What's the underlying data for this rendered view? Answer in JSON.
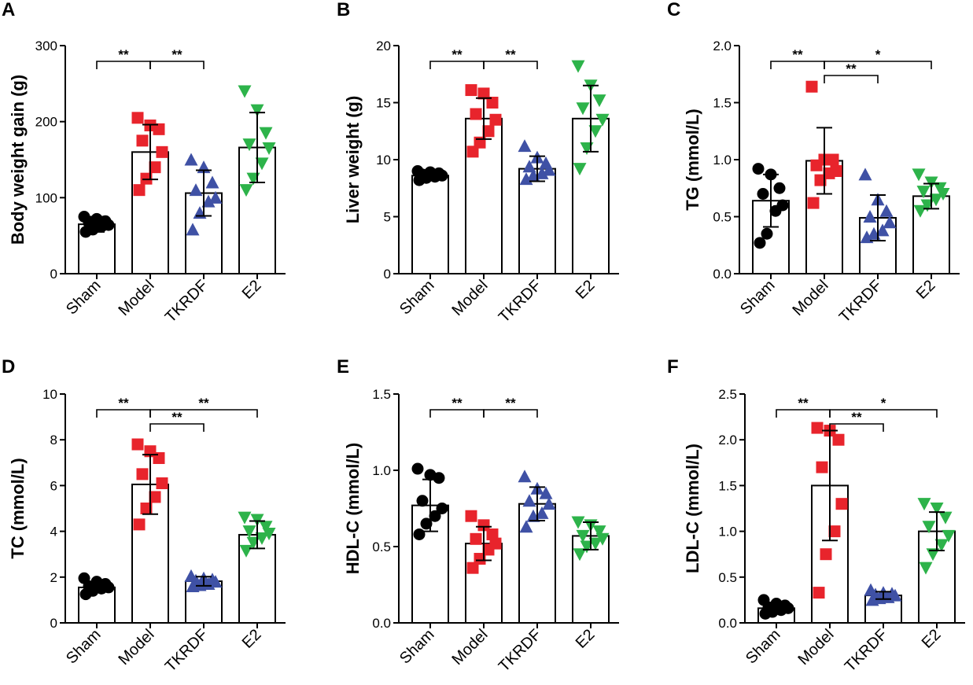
{
  "colors": {
    "Sham": "#000000",
    "Model": "#e8242c",
    "TKRDF": "#3f51a5",
    "E2": "#2db34a",
    "axis": "#000000",
    "bar_fill": "#ffffff"
  },
  "markers": {
    "Sham": "circle",
    "Model": "square",
    "TKRDF": "triangle-up",
    "E2": "triangle-down"
  },
  "chart_data": [
    {
      "panel": "A",
      "type": "bar",
      "ylabel": "Body weight gain (g)",
      "categories": [
        "Sham",
        "Model",
        "TKRDF",
        "E2"
      ],
      "ylim": [
        0,
        300
      ],
      "yticks": [
        0,
        100,
        200,
        300
      ],
      "tick_labels": [
        "0",
        "100",
        "200",
        "300"
      ],
      "means": [
        65,
        160,
        106,
        166
      ],
      "sd": [
        10,
        36,
        30,
        46
      ],
      "points": [
        [
          55,
          58,
          62,
          64,
          67,
          69,
          72,
          75
        ],
        [
          110,
          125,
          140,
          160,
          175,
          190,
          195,
          205
        ],
        [
          58,
          80,
          95,
          100,
          110,
          120,
          140,
          150
        ],
        [
          110,
          125,
          145,
          165,
          170,
          185,
          215,
          240
        ]
      ],
      "significance": [
        {
          "from": 0,
          "to": 1,
          "label": "**",
          "level": 0
        },
        {
          "from": 1,
          "to": 2,
          "label": "**",
          "level": 0
        }
      ]
    },
    {
      "panel": "B",
      "type": "bar",
      "ylabel": "Liver weight (g)",
      "categories": [
        "Sham",
        "Model",
        "TKRDF",
        "E2"
      ],
      "ylim": [
        0,
        20
      ],
      "yticks": [
        0,
        5,
        10,
        15,
        20
      ],
      "tick_labels": [
        "0",
        "5",
        "10",
        "15",
        "20"
      ],
      "means": [
        8.6,
        13.6,
        9.2,
        13.6
      ],
      "sd": [
        0.3,
        1.8,
        1.1,
        2.9
      ],
      "points": [
        [
          8.2,
          8.4,
          8.5,
          8.6,
          8.7,
          8.8,
          8.9,
          9.0
        ],
        [
          10.7,
          11.5,
          12.5,
          13.5,
          14.0,
          15.0,
          15.8,
          16.1
        ],
        [
          8.3,
          8.6,
          8.8,
          9.1,
          9.4,
          9.7,
          10.2,
          11.2
        ],
        [
          9.2,
          11.0,
          12.5,
          13.5,
          14.5,
          15.2,
          16.5,
          18.2
        ]
      ],
      "significance": [
        {
          "from": 0,
          "to": 1,
          "label": "**",
          "level": 0
        },
        {
          "from": 1,
          "to": 2,
          "label": "**",
          "level": 0
        }
      ]
    },
    {
      "panel": "C",
      "type": "bar",
      "ylabel": "TG (mmol/L)",
      "categories": [
        "Sham",
        "Model",
        "TKRDF",
        "E2"
      ],
      "ylim": [
        0,
        2.0
      ],
      "yticks": [
        0,
        0.5,
        1.0,
        1.5,
        2.0
      ],
      "tick_labels": [
        "0.0",
        "0.5",
        "1.0",
        "1.5",
        "2.0"
      ],
      "means": [
        0.64,
        0.99,
        0.49,
        0.68
      ],
      "sd": [
        0.23,
        0.29,
        0.2,
        0.11
      ],
      "points": [
        [
          0.27,
          0.35,
          0.55,
          0.6,
          0.7,
          0.75,
          0.87,
          0.92
        ],
        [
          0.62,
          0.82,
          0.88,
          0.9,
          0.95,
          1.0,
          1.0,
          1.64
        ],
        [
          0.32,
          0.35,
          0.38,
          0.45,
          0.5,
          0.55,
          0.65,
          0.87
        ],
        [
          0.55,
          0.6,
          0.65,
          0.7,
          0.72,
          0.75,
          0.8,
          0.87
        ]
      ],
      "significance": [
        {
          "from": 0,
          "to": 1,
          "label": "**",
          "level": 0
        },
        {
          "from": 1,
          "to": 3,
          "label": "*",
          "level": 0
        },
        {
          "from": 1,
          "to": 2,
          "label": "**",
          "level": 1
        }
      ]
    },
    {
      "panel": "D",
      "type": "bar",
      "ylabel": "TC (mmol/L)",
      "categories": [
        "Sham",
        "Model",
        "TKRDF",
        "E2"
      ],
      "ylim": [
        0,
        10
      ],
      "yticks": [
        0,
        2,
        4,
        6,
        8,
        10
      ],
      "tick_labels": [
        "0",
        "2",
        "4",
        "6",
        "8",
        "10"
      ],
      "means": [
        1.55,
        6.05,
        1.82,
        3.85
      ],
      "sd": [
        0.2,
        1.3,
        0.2,
        0.6
      ],
      "points": [
        [
          1.25,
          1.4,
          1.5,
          1.55,
          1.6,
          1.7,
          1.8,
          1.95
        ],
        [
          4.3,
          5.0,
          5.5,
          6.1,
          6.5,
          7.2,
          7.5,
          7.8
        ],
        [
          1.6,
          1.65,
          1.7,
          1.8,
          1.85,
          1.9,
          1.95,
          2.05
        ],
        [
          3.15,
          3.5,
          3.7,
          3.9,
          4.0,
          4.2,
          4.5,
          4.6
        ]
      ],
      "significance": [
        {
          "from": 0,
          "to": 1,
          "label": "**",
          "level": 0
        },
        {
          "from": 1,
          "to": 3,
          "label": "**",
          "level": 0
        },
        {
          "from": 1,
          "to": 2,
          "label": "**",
          "level": 1
        }
      ]
    },
    {
      "panel": "E",
      "type": "bar",
      "ylabel": "HDL-C (mmol/L)",
      "categories": [
        "Sham",
        "Model",
        "TKRDF",
        "E2"
      ],
      "ylim": [
        0,
        1.5
      ],
      "yticks": [
        0,
        0.5,
        1.0,
        1.5
      ],
      "tick_labels": [
        "0.0",
        "0.5",
        "1.0",
        "1.5"
      ],
      "means": [
        0.77,
        0.52,
        0.78,
        0.57
      ],
      "sd": [
        0.17,
        0.11,
        0.11,
        0.09
      ],
      "points": [
        [
          0.58,
          0.65,
          0.7,
          0.75,
          0.8,
          0.95,
          0.97,
          1.01
        ],
        [
          0.36,
          0.42,
          0.48,
          0.52,
          0.55,
          0.58,
          0.64,
          0.7
        ],
        [
          0.63,
          0.7,
          0.72,
          0.78,
          0.8,
          0.85,
          0.88,
          0.96
        ],
        [
          0.45,
          0.5,
          0.52,
          0.55,
          0.57,
          0.6,
          0.64,
          0.66
        ]
      ],
      "significance": [
        {
          "from": 0,
          "to": 1,
          "label": "**",
          "level": 0
        },
        {
          "from": 1,
          "to": 2,
          "label": "**",
          "level": 0
        }
      ]
    },
    {
      "panel": "F",
      "type": "bar",
      "ylabel": "LDL-C (mmol/L)",
      "categories": [
        "Sham",
        "Model",
        "TKRDF",
        "E2"
      ],
      "ylim": [
        0,
        2.5
      ],
      "yticks": [
        0,
        0.5,
        1.0,
        1.5,
        2.0,
        2.5
      ],
      "tick_labels": [
        "0.0",
        "0.5",
        "1.0",
        "1.5",
        "2.0",
        "2.5"
      ],
      "means": [
        0.16,
        1.5,
        0.3,
        1.0
      ],
      "sd": [
        0.04,
        0.6,
        0.04,
        0.21
      ],
      "points": [
        [
          0.1,
          0.12,
          0.14,
          0.16,
          0.17,
          0.19,
          0.21,
          0.25
        ],
        [
          0.33,
          0.75,
          1.0,
          1.3,
          1.7,
          2.0,
          2.1,
          2.13
        ],
        [
          0.25,
          0.27,
          0.28,
          0.3,
          0.31,
          0.32,
          0.33,
          0.36
        ],
        [
          0.6,
          0.75,
          0.85,
          0.95,
          1.05,
          1.15,
          1.25,
          1.3
        ]
      ],
      "significance": [
        {
          "from": 0,
          "to": 1,
          "label": "**",
          "level": 0
        },
        {
          "from": 1,
          "to": 3,
          "label": "*",
          "level": 0
        },
        {
          "from": 1,
          "to": 2,
          "label": "**",
          "level": 1
        }
      ]
    }
  ]
}
